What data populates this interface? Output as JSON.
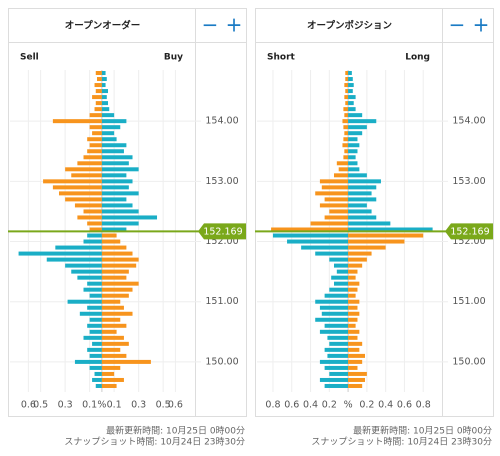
{
  "chart_data": [
    {
      "type": "bar",
      "title": "オープンオーダー",
      "controls": [
        "−",
        "+"
      ],
      "y": [
        149.6,
        149.7,
        149.8,
        149.9,
        150.0,
        150.1,
        150.2,
        150.3,
        150.4,
        150.5,
        150.6,
        150.7,
        150.8,
        150.9,
        151.0,
        151.1,
        151.2,
        151.3,
        151.4,
        151.5,
        151.6,
        151.7,
        151.8,
        151.9,
        152.0,
        152.1,
        152.2,
        152.3,
        152.4,
        152.5,
        152.6,
        152.7,
        152.8,
        152.9,
        153.0,
        153.1,
        153.2,
        153.3,
        153.4,
        153.5,
        153.6,
        153.7,
        153.8,
        153.9,
        154.0,
        154.1,
        154.2,
        154.3,
        154.4,
        154.5,
        154.6,
        154.7,
        154.8
      ],
      "series": [
        {
          "name": "Sell",
          "side": "left",
          "color_above": "#f7941d",
          "color_below": "#1aaec6",
          "values": [
            0.05,
            0.08,
            0.06,
            0.1,
            0.22,
            0.1,
            0.12,
            0.08,
            0.15,
            0.1,
            0.12,
            0.1,
            0.18,
            0.12,
            0.28,
            0.1,
            0.15,
            0.12,
            0.2,
            0.25,
            0.3,
            0.45,
            0.68,
            0.38,
            0.15,
            0.12,
            0.1,
            0.12,
            0.2,
            0.15,
            0.22,
            0.3,
            0.35,
            0.4,
            0.48,
            0.25,
            0.3,
            0.2,
            0.15,
            0.12,
            0.1,
            0.12,
            0.08,
            0.1,
            0.4,
            0.1,
            0.06,
            0.05,
            0.08,
            0.05,
            0.06,
            0.04,
            0.05
          ]
        },
        {
          "name": "Buy",
          "side": "right",
          "color_above": "#1aaec6",
          "color_below": "#f7941d",
          "values": [
            0.12,
            0.18,
            0.1,
            0.15,
            0.4,
            0.2,
            0.15,
            0.22,
            0.18,
            0.12,
            0.2,
            0.15,
            0.25,
            0.18,
            0.15,
            0.22,
            0.25,
            0.3,
            0.2,
            0.22,
            0.28,
            0.3,
            0.25,
            0.2,
            0.15,
            0.12,
            0.2,
            0.3,
            0.45,
            0.3,
            0.25,
            0.2,
            0.3,
            0.22,
            0.25,
            0.2,
            0.3,
            0.22,
            0.25,
            0.18,
            0.2,
            0.12,
            0.1,
            0.15,
            0.2,
            0.1,
            0.06,
            0.05,
            0.04,
            0.05,
            0.03,
            0.04,
            0.03
          ]
        }
      ],
      "current": 152.169,
      "current_color": "#7aa81a",
      "ylim": [
        149.5,
        154.85
      ],
      "yticks": [
        {
          "value": 150,
          "label": "150.00"
        },
        {
          "value": 151,
          "label": "151.00"
        },
        {
          "value": 152,
          "label": "152.00"
        },
        {
          "value": 153,
          "label": "153.00"
        },
        {
          "value": 154,
          "label": "154.00"
        }
      ],
      "xlim": [
        -0.75,
        0.76
      ],
      "xticks": [
        {
          "value": -0.6,
          "label": "0.6"
        },
        {
          "value": -0.5,
          "label": "0.5"
        },
        {
          "value": -0.3,
          "label": "0.3"
        },
        {
          "value": -0.1,
          "label": "0.1"
        },
        {
          "value": 0,
          "label": "%"
        },
        0.1,
        0.3,
        0.5,
        0.6
      ],
      "grid": true,
      "footer": [
        "最新更新時間: 10月25日 0時00分",
        "スナップショット時間: 10月24日 23時30分"
      ]
    },
    {
      "type": "bar",
      "title": "オープンポジション",
      "controls": [
        "−",
        "+"
      ],
      "y": [
        149.6,
        149.7,
        149.8,
        149.9,
        150.0,
        150.1,
        150.2,
        150.3,
        150.4,
        150.5,
        150.6,
        150.7,
        150.8,
        150.9,
        151.0,
        151.1,
        151.2,
        151.3,
        151.4,
        151.5,
        151.6,
        151.7,
        151.8,
        151.9,
        152.0,
        152.1,
        152.2,
        152.3,
        152.4,
        152.5,
        152.6,
        152.7,
        152.8,
        152.9,
        153.0,
        153.1,
        153.2,
        153.3,
        153.4,
        153.5,
        153.6,
        153.7,
        153.8,
        153.9,
        154.0,
        154.1,
        154.2,
        154.3,
        154.4,
        154.5,
        154.6,
        154.7,
        154.8
      ],
      "series": [
        {
          "name": "Short",
          "side": "left",
          "color_above": "#f7941d",
          "color_below": "#1aaec6",
          "values": [
            0.25,
            0.3,
            0.2,
            0.25,
            0.3,
            0.22,
            0.25,
            0.2,
            0.22,
            0.3,
            0.25,
            0.35,
            0.28,
            0.3,
            0.35,
            0.25,
            0.2,
            0.15,
            0.18,
            0.12,
            0.15,
            0.2,
            0.35,
            0.5,
            0.65,
            0.8,
            0.82,
            0.4,
            0.25,
            0.2,
            0.3,
            0.25,
            0.35,
            0.28,
            0.3,
            0.15,
            0.1,
            0.12,
            0.05,
            0.04,
            0.06,
            0.05,
            0.04,
            0.05,
            0.06,
            0.04,
            0.05,
            0.03,
            0.04,
            0.03,
            0.04,
            0.03,
            0.03
          ]
        },
        {
          "name": "Long",
          "side": "right",
          "color_above": "#1aaec6",
          "color_below": "#f7941d",
          "values": [
            0.15,
            0.18,
            0.2,
            0.1,
            0.15,
            0.18,
            0.12,
            0.15,
            0.1,
            0.12,
            0.08,
            0.1,
            0.12,
            0.1,
            0.12,
            0.08,
            0.1,
            0.12,
            0.08,
            0.1,
            0.15,
            0.2,
            0.25,
            0.4,
            0.6,
            0.8,
            0.9,
            0.45,
            0.3,
            0.25,
            0.2,
            0.3,
            0.25,
            0.3,
            0.35,
            0.2,
            0.12,
            0.1,
            0.08,
            0.1,
            0.12,
            0.1,
            0.15,
            0.2,
            0.3,
            0.15,
            0.08,
            0.06,
            0.08,
            0.05,
            0.06,
            0.05,
            0.04
          ]
        }
      ],
      "current": 152.169,
      "current_color": "#7aa81a",
      "ylim": [
        149.5,
        154.85
      ],
      "yticks": [
        {
          "value": 150,
          "label": "150.00"
        },
        {
          "value": 151,
          "label": "151.00"
        },
        {
          "value": 152,
          "label": "152.00"
        },
        {
          "value": 153,
          "label": "153.00"
        },
        {
          "value": 154,
          "label": "154.00"
        }
      ],
      "xlim": [
        -0.97,
        1.0
      ],
      "xticks": [
        0.8,
        0.6,
        0.4,
        0.2,
        {
          "value": 0,
          "label": "%"
        },
        0.2,
        0.4,
        0.6,
        0.8
      ],
      "xtick_side": [
        "left",
        "left",
        "left",
        "left",
        "center",
        "right",
        "right",
        "right",
        "right"
      ],
      "grid": true,
      "footer": [
        "最新更新時間: 10月25日 0時00分",
        "スナップショット時間: 10月24日 23時30分"
      ]
    }
  ]
}
